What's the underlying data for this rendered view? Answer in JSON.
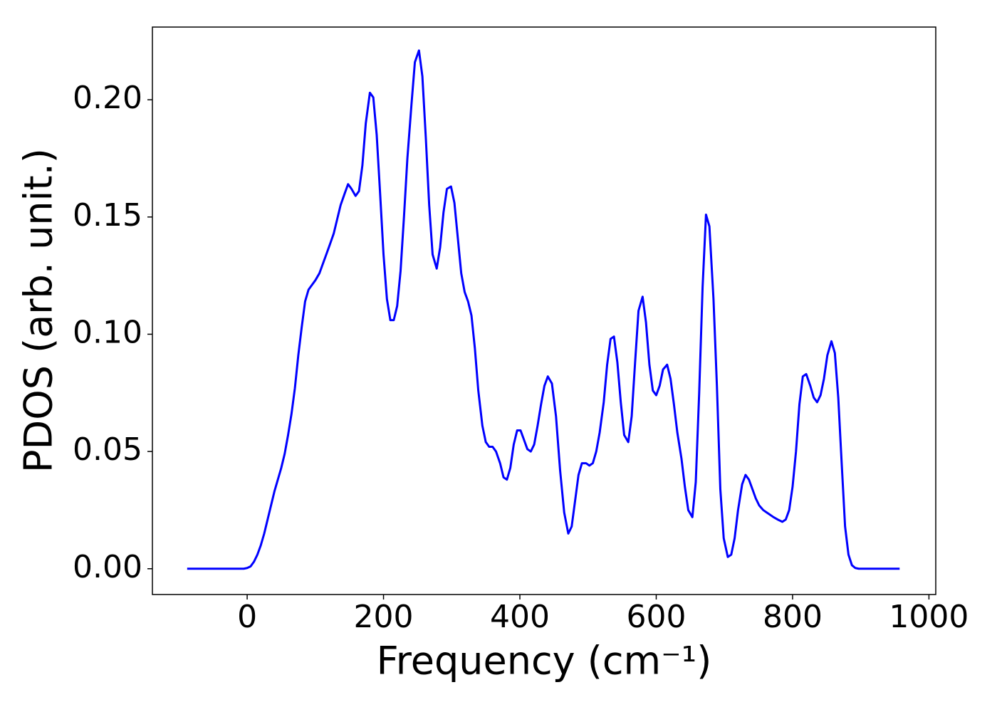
{
  "chart_data": {
    "type": "line",
    "x_label": "Frequency (cm⁻¹)",
    "y_label": "PDOS (arb. unit.)",
    "color": "#0000ff",
    "grid": false,
    "xlim": [
      -139,
      1010
    ],
    "ylim": [
      -0.011,
      0.231
    ],
    "xticks": [
      0,
      200,
      400,
      600,
      800,
      1000
    ],
    "yticks": [
      {
        "value": 0,
        "label": "0.00"
      },
      0.05,
      {
        "value": 0.1,
        "label": "0.10"
      },
      0.15,
      {
        "value": 0.2,
        "label": "0.20"
      }
    ],
    "x": [
      -88,
      -5,
      0,
      5,
      10,
      15,
      20,
      25,
      30,
      35,
      40,
      45,
      50,
      55,
      60,
      65,
      70,
      75,
      80,
      85,
      90,
      95,
      100,
      106,
      111,
      116,
      121,
      127,
      132,
      137,
      143,
      148,
      153,
      159,
      164,
      169,
      174,
      180,
      185,
      190,
      195,
      200,
      205,
      210,
      215,
      220,
      225,
      230,
      235,
      241,
      246,
      252,
      257,
      262,
      267,
      272,
      278,
      283,
      288,
      293,
      299,
      304,
      309,
      314,
      319,
      324,
      329,
      334,
      339,
      345,
      350,
      355,
      360,
      365,
      371,
      376,
      381,
      386,
      391,
      396,
      401,
      406,
      411,
      416,
      421,
      426,
      431,
      436,
      441,
      447,
      453,
      459,
      465,
      471,
      476,
      481,
      486,
      491,
      497,
      502,
      507,
      512,
      517,
      523,
      528,
      533,
      538,
      543,
      548,
      553,
      559,
      564,
      569,
      574,
      580,
      585,
      590,
      595,
      600,
      605,
      610,
      616,
      621,
      626,
      631,
      637,
      642,
      647,
      653,
      658,
      663,
      668,
      673,
      678,
      684,
      689,
      694,
      699,
      705,
      710,
      715,
      720,
      726,
      731,
      736,
      741,
      746,
      751,
      757,
      762,
      767,
      772,
      778,
      785,
      790,
      795,
      800,
      805,
      810,
      815,
      820,
      826,
      831,
      836,
      841,
      846,
      851,
      857,
      862,
      867,
      872,
      877,
      882,
      887,
      892,
      897,
      957
    ],
    "values": [
      0,
      0,
      0.0003,
      0.001,
      0.003,
      0.006,
      0.01,
      0.015,
      0.021,
      0.027,
      0.033,
      0.038,
      0.043,
      0.049,
      0.057,
      0.066,
      0.077,
      0.091,
      0.103,
      0.114,
      0.119,
      0.121,
      0.123,
      0.126,
      0.13,
      0.134,
      0.138,
      0.143,
      0.149,
      0.155,
      0.16,
      0.164,
      0.162,
      0.159,
      0.161,
      0.172,
      0.19,
      0.203,
      0.201,
      0.185,
      0.16,
      0.134,
      0.115,
      0.106,
      0.106,
      0.112,
      0.127,
      0.15,
      0.175,
      0.198,
      0.216,
      0.221,
      0.21,
      0.184,
      0.155,
      0.134,
      0.128,
      0.137,
      0.152,
      0.162,
      0.163,
      0.156,
      0.141,
      0.126,
      0.118,
      0.114,
      0.108,
      0.094,
      0.076,
      0.061,
      0.054,
      0.052,
      0.052,
      0.05,
      0.045,
      0.039,
      0.038,
      0.043,
      0.053,
      0.059,
      0.059,
      0.055,
      0.051,
      0.05,
      0.053,
      0.061,
      0.07,
      0.078,
      0.082,
      0.079,
      0.065,
      0.042,
      0.024,
      0.015,
      0.018,
      0.029,
      0.04,
      0.045,
      0.045,
      0.044,
      0.045,
      0.05,
      0.058,
      0.071,
      0.087,
      0.098,
      0.099,
      0.088,
      0.071,
      0.057,
      0.054,
      0.065,
      0.088,
      0.11,
      0.116,
      0.105,
      0.087,
      0.076,
      0.074,
      0.078,
      0.085,
      0.087,
      0.081,
      0.07,
      0.058,
      0.047,
      0.035,
      0.025,
      0.022,
      0.037,
      0.075,
      0.12,
      0.151,
      0.146,
      0.115,
      0.078,
      0.034,
      0.013,
      0.005,
      0.006,
      0.013,
      0.025,
      0.036,
      0.04,
      0.038,
      0.034,
      0.03,
      0.027,
      0.025,
      0.024,
      0.023,
      0.022,
      0.021,
      0.02,
      0.021,
      0.025,
      0.035,
      0.05,
      0.07,
      0.082,
      0.083,
      0.078,
      0.073,
      0.071,
      0.074,
      0.081,
      0.091,
      0.097,
      0.092,
      0.073,
      0.045,
      0.018,
      0.006,
      0.0015,
      0.0003,
      0,
      0
    ]
  }
}
